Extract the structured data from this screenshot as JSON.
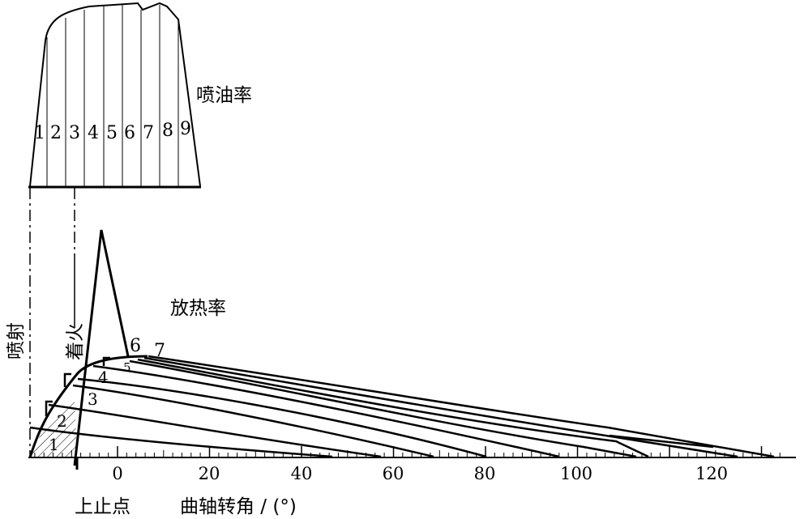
{
  "injection_rate_label": "喷油率",
  "heat_release_label": "放热率",
  "injection_axis_label": "喷射",
  "ignition_label": "着火",
  "tdc_label": "上止点",
  "x_axis_label": "曲轴转角 / (°)",
  "x_ticks": [
    "0",
    "20",
    "40",
    "60",
    "80",
    "100",
    "120"
  ],
  "injection_slices": [
    "1",
    "2",
    "3",
    "4",
    "5",
    "6",
    "7",
    "8",
    "9"
  ],
  "curve_labels": [
    "1",
    "2",
    "3",
    "4",
    "5",
    "6",
    "7"
  ]
}
